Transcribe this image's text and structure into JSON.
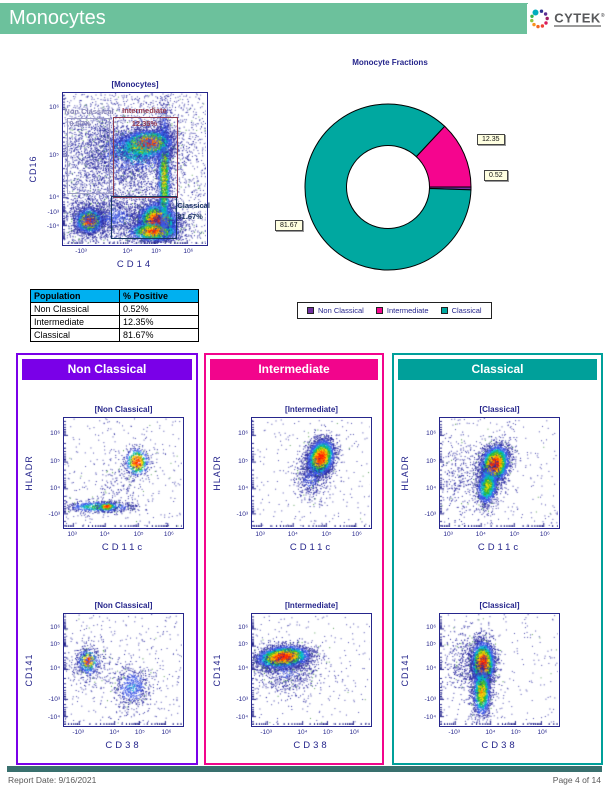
{
  "header": {
    "title": "Monocytes",
    "brand": "CYTEK",
    "brand_mark": "®"
  },
  "footer": {
    "report_date": "Report Date: 9/16/2021",
    "page_label": "Page 4 of 14"
  },
  "colors": {
    "header_bg": "#6CC19C",
    "footer_bar": "#39706E",
    "plot_text_navy": "#26268C",
    "table_header_bg": "#00B0F0",
    "label_box_bg": "#FFFFE1",
    "panel_non_classical": "#7A00E8",
    "panel_intermediate": "#F2058C",
    "panel_classical": "#00A09A"
  },
  "stats_table": {
    "headers": [
      "Population",
      "% Positive"
    ],
    "rows": [
      {
        "population": "Non Classical",
        "value": "0.52%"
      },
      {
        "population": "Intermediate",
        "value": "12.35%"
      },
      {
        "population": "Classical",
        "value": "81.67%"
      }
    ]
  },
  "panels": [
    {
      "label": "Non Classical"
    },
    {
      "label": "Intermediate"
    },
    {
      "label": "Classical"
    }
  ],
  "chart_data": [
    {
      "id": "monocyte-fractions",
      "type": "pie",
      "title": "Monocyte Fractions",
      "donut": true,
      "hole_ratio": 0.5,
      "start_angle_deg": 43,
      "series": [
        {
          "name": "Intermediate",
          "value": 12.35,
          "color": "#F5058E",
          "label": "12.35"
        },
        {
          "name": "Non Classical",
          "value": 0.52,
          "color": "#7030A0",
          "label": "0.52"
        },
        {
          "name": "Classical",
          "value": 81.67,
          "color": "#00A8A0",
          "label": "81.67"
        }
      ],
      "legend": [
        {
          "name": "Non Classical",
          "color": "#7030A0"
        },
        {
          "name": "Intermediate",
          "color": "#F5058E"
        },
        {
          "name": "Classical",
          "color": "#00A8A0"
        }
      ],
      "legend_position": "bottom"
    },
    {
      "id": "monocytes",
      "type": "scatter-density",
      "title": "[Monocytes]",
      "xlabel": "CD14",
      "ylabel": "CD16",
      "xticks": [
        {
          "t": "-10³",
          "f": 0.13
        },
        {
          "t": "10⁴",
          "f": 0.45
        },
        {
          "t": "10⁵",
          "f": 0.645
        },
        {
          "t": "10⁶",
          "f": 0.865
        }
      ],
      "yticks": [
        {
          "t": "10⁶",
          "f": 0.105
        },
        {
          "t": "10⁵",
          "f": 0.415
        },
        {
          "t": "10⁴",
          "f": 0.69
        },
        {
          "t": "-10³",
          "f": 0.785
        },
        {
          "t": "-10⁴",
          "f": 0.875
        }
      ],
      "gates": [
        {
          "name": "Non Classical",
          "pct": "0.52%",
          "box": [
            0.025,
            0.165,
            0.315,
            0.655
          ],
          "color": "#9B9BC4",
          "text_color": "#8D8BB8",
          "name_pos": [
            0.01,
            0.095,
            0.31,
            "center"
          ],
          "pct_pos": [
            0.045,
            0.175,
            0.22,
            "left"
          ]
        },
        {
          "name": "Intermediate",
          "pct": "12.35%",
          "box": [
            0.347,
            0.156,
            0.792,
            0.68
          ],
          "color": "#8E3A50",
          "text_color": "#943A50",
          "name_pos": [
            0.347,
            0.088,
            0.445,
            "center"
          ],
          "pct_pos": [
            0.347,
            0.172,
            0.445,
            "center"
          ]
        },
        {
          "name": "Classical",
          "pct": "81.67%",
          "box": [
            0.336,
            0.684,
            0.785,
            0.955
          ],
          "color": "#17375E",
          "text_color": "#1F3864",
          "name_pos": [
            0.8,
            0.715,
            0.3,
            "left"
          ],
          "pct_pos": [
            0.8,
            0.79,
            0.3,
            "left"
          ]
        }
      ],
      "bg_n": 2000,
      "clusters": [
        {
          "x": 0.655,
          "y": 0.85,
          "sx": 0.07,
          "sy": 0.065,
          "n": 4200,
          "heat": 1.0
        },
        {
          "x": 0.63,
          "y": 0.915,
          "sx": 0.095,
          "sy": 0.035,
          "n": 1300,
          "heat": 0.85
        },
        {
          "x": 0.705,
          "y": 0.55,
          "sx": 0.026,
          "sy": 0.235,
          "n": 2300,
          "heat": 0.62
        },
        {
          "x": 0.58,
          "y": 0.335,
          "sx": 0.095,
          "sy": 0.048,
          "rot": -6,
          "n": 3200,
          "heat": 0.97
        },
        {
          "x": 0.5,
          "y": 0.38,
          "sx": 0.16,
          "sy": 0.09,
          "n": 1700,
          "heat": 0.4
        },
        {
          "x": 0.18,
          "y": 0.845,
          "sx": 0.05,
          "sy": 0.042,
          "n": 1800,
          "heat": 0.97
        },
        {
          "x": 0.18,
          "y": 0.84,
          "sx": 0.09,
          "sy": 0.075,
          "n": 600,
          "heat": 0.25
        },
        {
          "x": 0.35,
          "y": 0.52,
          "sx": 0.22,
          "sy": 0.2,
          "n": 1500,
          "heat": 0.13
        },
        {
          "x": 0.22,
          "y": 0.3,
          "sx": 0.13,
          "sy": 0.13,
          "n": 500,
          "heat": 0.12
        },
        {
          "x": 0.36,
          "y": 0.82,
          "sx": 0.12,
          "sy": 0.06,
          "n": 700,
          "heat": 0.2
        }
      ]
    },
    {
      "id": "nc-cd11c",
      "type": "scatter-density",
      "title": "[Non Classical]",
      "xlabel": "CD11c",
      "ylabel": "HLADR",
      "xticks": [
        {
          "t": "10³",
          "f": 0.075
        },
        {
          "t": "10⁴",
          "f": 0.345
        },
        {
          "t": "10⁵",
          "f": 0.625
        },
        {
          "t": "10⁶",
          "f": 0.875
        }
      ],
      "yticks": [
        {
          "t": "10⁶",
          "f": 0.155
        },
        {
          "t": "10⁵",
          "f": 0.4
        },
        {
          "t": "10⁴",
          "f": 0.645
        },
        {
          "t": "-10³",
          "f": 0.875
        }
      ],
      "bg_n": 280,
      "clusters": [
        {
          "x": 0.3,
          "y": 0.81,
          "sx": 0.15,
          "sy": 0.028,
          "n": 750,
          "heat": 0.5
        },
        {
          "x": 0.36,
          "y": 0.81,
          "sx": 0.04,
          "sy": 0.02,
          "n": 280,
          "heat": 0.95
        },
        {
          "x": 0.615,
          "y": 0.4,
          "sx": 0.05,
          "sy": 0.065,
          "n": 620,
          "heat": 0.95
        },
        {
          "x": 0.5,
          "y": 0.55,
          "sx": 0.12,
          "sy": 0.14,
          "n": 160,
          "heat": 0.1
        }
      ]
    },
    {
      "id": "nc-cd38",
      "type": "scatter-density",
      "title": "[Non Classical]",
      "xlabel": "CD38",
      "ylabel": "CD141",
      "xticks": [
        {
          "t": "-10³",
          "f": 0.125
        },
        {
          "t": "10⁴",
          "f": 0.425
        },
        {
          "t": "10⁵",
          "f": 0.635
        },
        {
          "t": "10⁶",
          "f": 0.855
        }
      ],
      "yticks": [
        {
          "t": "10⁶",
          "f": 0.13
        },
        {
          "t": "10⁵",
          "f": 0.285
        },
        {
          "t": "10⁴",
          "f": 0.495
        },
        {
          "t": "-10³",
          "f": 0.765
        },
        {
          "t": "-10⁴",
          "f": 0.92
        }
      ],
      "bg_n": 330,
      "clusters": [
        {
          "x": 0.2,
          "y": 0.42,
          "sx": 0.045,
          "sy": 0.055,
          "n": 430,
          "heat": 0.9
        },
        {
          "x": 0.21,
          "y": 0.45,
          "sx": 0.09,
          "sy": 0.1,
          "n": 330,
          "heat": 0.22
        },
        {
          "x": 0.57,
          "y": 0.66,
          "sx": 0.085,
          "sy": 0.1,
          "n": 620,
          "heat": 0.28
        }
      ]
    },
    {
      "id": "int-cd11c",
      "type": "scatter-density",
      "title": "[Intermediate]",
      "xlabel": "CD11c",
      "ylabel": "HLADR",
      "xticks": [
        {
          "t": "10³",
          "f": 0.075
        },
        {
          "t": "10⁴",
          "f": 0.345
        },
        {
          "t": "10⁵",
          "f": 0.625
        },
        {
          "t": "10⁶",
          "f": 0.875
        }
      ],
      "yticks": [
        {
          "t": "10⁶",
          "f": 0.155
        },
        {
          "t": "10⁵",
          "f": 0.4
        },
        {
          "t": "10⁴",
          "f": 0.645
        },
        {
          "t": "-10³",
          "f": 0.875
        }
      ],
      "bg_n": 230,
      "clusters": [
        {
          "x": 0.58,
          "y": 0.36,
          "sx": 0.055,
          "sy": 0.085,
          "rot": 15,
          "n": 3600,
          "heat": 1.0
        },
        {
          "x": 0.5,
          "y": 0.56,
          "sx": 0.08,
          "sy": 0.1,
          "n": 450,
          "heat": 0.18
        }
      ]
    },
    {
      "id": "int-cd38",
      "type": "scatter-density",
      "title": "[Intermediate]",
      "xlabel": "CD38",
      "ylabel": "CD141",
      "xticks": [
        {
          "t": "-10³",
          "f": 0.125
        },
        {
          "t": "10⁴",
          "f": 0.425
        },
        {
          "t": "10⁵",
          "f": 0.635
        },
        {
          "t": "10⁶",
          "f": 0.855
        }
      ],
      "yticks": [
        {
          "t": "10⁶",
          "f": 0.13
        },
        {
          "t": "10⁵",
          "f": 0.285
        },
        {
          "t": "10⁴",
          "f": 0.495
        },
        {
          "t": "-10³",
          "f": 0.765
        },
        {
          "t": "-10⁴",
          "f": 0.92
        }
      ],
      "bg_n": 240,
      "clusters": [
        {
          "x": 0.26,
          "y": 0.385,
          "sx": 0.115,
          "sy": 0.05,
          "rot": -6,
          "n": 3800,
          "heat": 1.0
        },
        {
          "x": 0.3,
          "y": 0.52,
          "sx": 0.14,
          "sy": 0.11,
          "n": 700,
          "heat": 0.16
        }
      ]
    },
    {
      "id": "cl-cd11c",
      "type": "scatter-density",
      "title": "[Classical]",
      "xlabel": "CD11c",
      "ylabel": "HLADR",
      "xticks": [
        {
          "t": "10³",
          "f": 0.075
        },
        {
          "t": "10⁴",
          "f": 0.345
        },
        {
          "t": "10⁵",
          "f": 0.625
        },
        {
          "t": "10⁶",
          "f": 0.875
        }
      ],
      "yticks": [
        {
          "t": "10⁶",
          "f": 0.155
        },
        {
          "t": "10⁵",
          "f": 0.4
        },
        {
          "t": "10⁴",
          "f": 0.645
        },
        {
          "t": "-10³",
          "f": 0.875
        }
      ],
      "bg_n": 270,
      "clusters": [
        {
          "x": 0.46,
          "y": 0.42,
          "sx": 0.06,
          "sy": 0.09,
          "rot": 14,
          "n": 3400,
          "heat": 1.0
        },
        {
          "x": 0.4,
          "y": 0.62,
          "sx": 0.045,
          "sy": 0.095,
          "rot": 8,
          "n": 1500,
          "heat": 0.6
        },
        {
          "x": 0.17,
          "y": 0.52,
          "sx": 0.11,
          "sy": 0.18,
          "n": 330,
          "heat": 0.08
        }
      ]
    },
    {
      "id": "cl-cd38",
      "type": "scatter-density",
      "title": "[Classical]",
      "xlabel": "CD38",
      "ylabel": "CD141",
      "xticks": [
        {
          "t": "-10³",
          "f": 0.125
        },
        {
          "t": "10⁴",
          "f": 0.425
        },
        {
          "t": "10⁵",
          "f": 0.635
        },
        {
          "t": "10⁶",
          "f": 0.855
        }
      ],
      "yticks": [
        {
          "t": "10⁶",
          "f": 0.13
        },
        {
          "t": "10⁵",
          "f": 0.285
        },
        {
          "t": "10⁴",
          "f": 0.495
        },
        {
          "t": "-10³",
          "f": 0.765
        },
        {
          "t": "-10⁴",
          "f": 0.92
        }
      ],
      "bg_n": 260,
      "clusters": [
        {
          "x": 0.36,
          "y": 0.44,
          "sx": 0.05,
          "sy": 0.1,
          "n": 3200,
          "heat": 1.0
        },
        {
          "x": 0.35,
          "y": 0.7,
          "sx": 0.04,
          "sy": 0.115,
          "n": 1600,
          "heat": 0.7
        },
        {
          "x": 0.22,
          "y": 0.45,
          "sx": 0.09,
          "sy": 0.15,
          "n": 430,
          "heat": 0.1
        }
      ]
    }
  ]
}
